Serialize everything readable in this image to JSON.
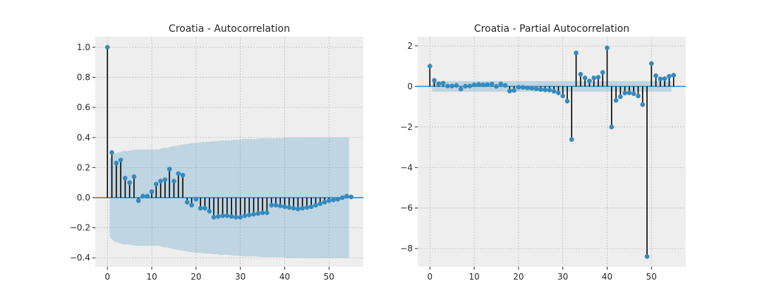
{
  "colors": {
    "plot_bg": "#eeeeee",
    "grid": "#bcbcbc",
    "stem": "#000000",
    "marker": "#348abd",
    "baseline": "#348abd",
    "confidence_band": "#348abd"
  },
  "chart_data": [
    {
      "type": "stem",
      "title": "Croatia - Autocorrelation",
      "xlabel": "",
      "ylabel": "",
      "xlim": [
        -2.75,
        57.75
      ],
      "ylim": [
        -0.46,
        1.07
      ],
      "xticks": [
        0,
        10,
        20,
        30,
        40,
        50
      ],
      "yticks": [
        -0.4,
        -0.2,
        0.0,
        0.2,
        0.4,
        0.6,
        0.8,
        1.0
      ],
      "ytick_labels": [
        "−0.4",
        "−0.2",
        "0.0",
        "0.2",
        "0.4",
        "0.6",
        "0.8",
        "1.0"
      ],
      "grid": true,
      "lags": [
        0,
        1,
        2,
        3,
        4,
        5,
        6,
        7,
        8,
        9,
        10,
        11,
        12,
        13,
        14,
        15,
        16,
        17,
        18,
        19,
        20,
        21,
        22,
        23,
        24,
        25,
        26,
        27,
        28,
        29,
        30,
        31,
        32,
        33,
        34,
        35,
        36,
        37,
        38,
        39,
        40,
        41,
        42,
        43,
        44,
        45,
        46,
        47,
        48,
        49,
        50,
        51,
        52,
        53,
        54,
        55
      ],
      "values": [
        1.0,
        0.3,
        0.23,
        0.25,
        0.13,
        0.1,
        0.14,
        -0.02,
        0.01,
        0.01,
        0.04,
        0.09,
        0.11,
        0.12,
        0.19,
        0.11,
        0.16,
        0.15,
        -0.03,
        -0.05,
        -0.01,
        -0.07,
        -0.07,
        -0.09,
        -0.13,
        -0.125,
        -0.12,
        -0.12,
        -0.125,
        -0.13,
        -0.13,
        -0.12,
        -0.115,
        -0.11,
        -0.105,
        -0.1,
        -0.1,
        -0.05,
        -0.05,
        -0.055,
        -0.06,
        -0.065,
        -0.07,
        -0.075,
        -0.07,
        -0.065,
        -0.06,
        -0.05,
        -0.04,
        -0.03,
        -0.02,
        -0.015,
        -0.01,
        0.0,
        0.01,
        0.005
      ],
      "confidence_band": {
        "lags": [
          1,
          2,
          3,
          4,
          5,
          6,
          7,
          8,
          9,
          10,
          11,
          12,
          13,
          14,
          15,
          16,
          17,
          18,
          19,
          20,
          21,
          22,
          23,
          24,
          25,
          26,
          27,
          28,
          29,
          30,
          31,
          32,
          33,
          34,
          35,
          36,
          37,
          38,
          39,
          40,
          41,
          42,
          43,
          44,
          45,
          46,
          47,
          48,
          49,
          50,
          51,
          52,
          53,
          54,
          55
        ],
        "upper": [
          0.26,
          0.29,
          0.3,
          0.31,
          0.31,
          0.315,
          0.32,
          0.32,
          0.32,
          0.32,
          0.32,
          0.32,
          0.33,
          0.33,
          0.34,
          0.345,
          0.35,
          0.355,
          0.36,
          0.365,
          0.365,
          0.37,
          0.37,
          0.375,
          0.375,
          0.38,
          0.38,
          0.38,
          0.385,
          0.385,
          0.39,
          0.39,
          0.39,
          0.39,
          0.395,
          0.395,
          0.395,
          0.395,
          0.395,
          0.395,
          0.4,
          0.4,
          0.4,
          0.4,
          0.4,
          0.4,
          0.4,
          0.4,
          0.4,
          0.4,
          0.4,
          0.4,
          0.4,
          0.4,
          0.4
        ]
      }
    },
    {
      "type": "stem",
      "title": "Croatia - Partial Autocorrelation",
      "xlabel": "",
      "ylabel": "",
      "xlim": [
        -2.75,
        57.75
      ],
      "ylim": [
        -8.9,
        2.45
      ],
      "xticks": [
        0,
        10,
        20,
        30,
        40,
        50
      ],
      "yticks": [
        -8,
        -6,
        -4,
        -2,
        0,
        2
      ],
      "ytick_labels": [
        "−8",
        "−6",
        "−4",
        "−2",
        "0",
        "2"
      ],
      "grid": true,
      "lags": [
        0,
        1,
        2,
        3,
        4,
        5,
        6,
        7,
        8,
        9,
        10,
        11,
        12,
        13,
        14,
        15,
        16,
        17,
        18,
        19,
        20,
        21,
        22,
        23,
        24,
        25,
        26,
        27,
        28,
        29,
        30,
        31,
        32,
        33,
        34,
        35,
        36,
        37,
        38,
        39,
        40,
        41,
        42,
        43,
        44,
        45,
        46,
        47,
        48,
        49,
        50,
        51,
        52,
        53,
        54,
        55
      ],
      "values": [
        1.0,
        0.3,
        0.13,
        0.16,
        0.02,
        0.02,
        0.05,
        -0.13,
        0.01,
        0.02,
        0.08,
        0.1,
        0.08,
        0.09,
        0.12,
        0.0,
        0.12,
        0.05,
        -0.23,
        -0.2,
        -0.04,
        -0.05,
        -0.07,
        -0.09,
        -0.12,
        -0.15,
        -0.17,
        -0.18,
        -0.24,
        -0.32,
        -0.47,
        -0.73,
        -2.62,
        1.65,
        0.6,
        0.42,
        0.27,
        0.42,
        0.45,
        0.69,
        1.9,
        -2.0,
        -0.69,
        -0.51,
        -0.33,
        -0.32,
        -0.36,
        -0.47,
        -0.9,
        -8.39,
        1.13,
        0.53,
        0.37,
        0.38,
        0.5,
        0.55
      ],
      "confidence_band": {
        "lags": [
          1,
          55
        ],
        "upper": [
          0.26,
          0.26
        ]
      }
    }
  ]
}
